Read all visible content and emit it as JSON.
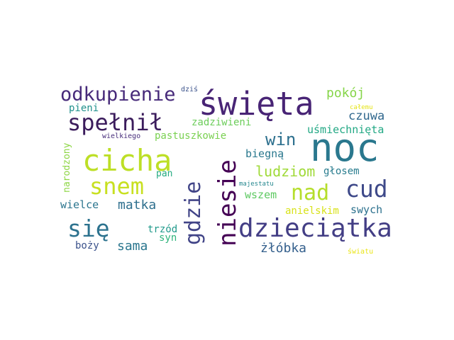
{
  "words": [
    {
      "id": "noc",
      "text": "noc",
      "color": "#2a788e"
    },
    {
      "id": "swieta",
      "text": "święta",
      "color": "#482475"
    },
    {
      "id": "cicha",
      "text": "cicha",
      "color": "#bddf26"
    },
    {
      "id": "dzieciatka",
      "text": "dzieciątka",
      "color": "#433e85"
    },
    {
      "id": "niesie",
      "text": "niesie",
      "color": "#440154"
    },
    {
      "id": "spelnil",
      "text": "spełnił",
      "color": "#3b1c5c"
    },
    {
      "id": "gdzie",
      "text": "gdzie",
      "color": "#414487"
    },
    {
      "id": "odkupienie",
      "text": "odkupienie",
      "color": "#472a7a"
    },
    {
      "id": "nad",
      "text": "nad",
      "color": "#b5de2b"
    },
    {
      "id": "snem",
      "text": "snem",
      "color": "#c8e020"
    },
    {
      "id": "sie",
      "text": "się",
      "color": "#2c728e"
    },
    {
      "id": "cud",
      "text": "cud",
      "color": "#3e4989"
    },
    {
      "id": "win",
      "text": "win",
      "color": "#2d708e"
    },
    {
      "id": "ludziom",
      "text": "ludziom",
      "color": "#a0da39"
    },
    {
      "id": "pokoj",
      "text": "pokój",
      "color": "#86d549"
    },
    {
      "id": "czuwa",
      "text": "czuwa",
      "color": "#31688e"
    },
    {
      "id": "zlobka",
      "text": "żłóbka",
      "color": "#35608d"
    },
    {
      "id": "matka",
      "text": "matka",
      "color": "#2e6f8e"
    },
    {
      "id": "sama",
      "text": "sama",
      "color": "#2a768e"
    },
    {
      "id": "usmiechnieta",
      "text": "uśmiechnięta",
      "color": "#22a884"
    },
    {
      "id": "pastuszkowie",
      "text": "pastuszkowie",
      "color": "#7ad151"
    },
    {
      "id": "zadziwieni",
      "text": "zadziwieni",
      "color": "#6ccd5a"
    },
    {
      "id": "wszem",
      "text": "wszem",
      "color": "#5ec962"
    },
    {
      "id": "biegna",
      "text": "biegną",
      "color": "#2a788e"
    },
    {
      "id": "glosem",
      "text": "głosem",
      "color": "#287c8e"
    },
    {
      "id": "anielskim",
      "text": "anielskim",
      "color": "#d8e219"
    },
    {
      "id": "swych",
      "text": "swych",
      "color": "#2c718e"
    },
    {
      "id": "wielce",
      "text": "wielce",
      "color": "#2b758e"
    },
    {
      "id": "pieni",
      "text": "pieni",
      "color": "#21918c"
    },
    {
      "id": "trzod",
      "text": "trzód",
      "color": "#1f998a"
    },
    {
      "id": "syn",
      "text": "syn",
      "color": "#2fb47c"
    },
    {
      "id": "bozy",
      "text": "boży",
      "color": "#3b528b"
    },
    {
      "id": "narodzony",
      "text": "narodzony",
      "color": "#8ed645"
    },
    {
      "id": "pan",
      "text": "pan",
      "color": "#25ab82"
    },
    {
      "id": "dzis",
      "text": "dziś",
      "color": "#3b528b"
    },
    {
      "id": "wielkiego",
      "text": "wielkiego",
      "color": "#472d7b"
    },
    {
      "id": "majestatu",
      "text": "majestatu",
      "color": "#24878e"
    },
    {
      "id": "calemu",
      "text": "całemu",
      "color": "#e5e419"
    },
    {
      "id": "swiatu",
      "text": "światu",
      "color": "#eae51a"
    }
  ]
}
